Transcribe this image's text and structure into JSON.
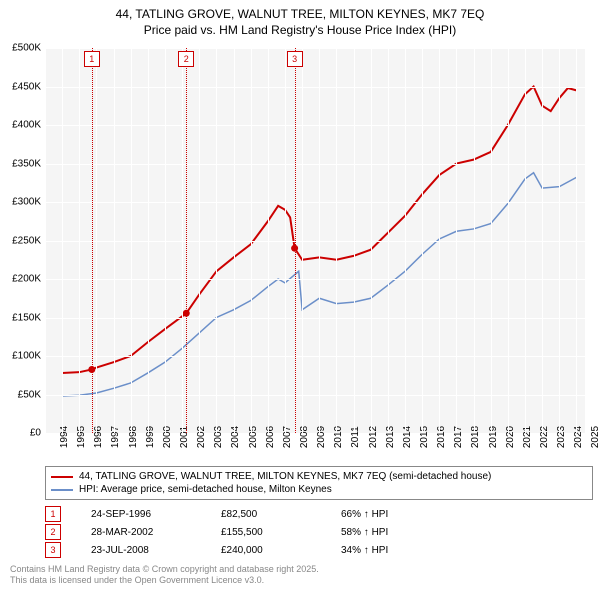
{
  "title_line1": "44, TATLING GROVE, WALNUT TREE, MILTON KEYNES, MK7 7EQ",
  "title_line2": "Price paid vs. HM Land Registry's House Price Index (HPI)",
  "chart": {
    "type": "line",
    "background_color": "#f5f5f5",
    "grid_color": "#ffffff",
    "x_years": [
      1994,
      1995,
      1996,
      1997,
      1998,
      1999,
      2000,
      2001,
      2002,
      2003,
      2004,
      2005,
      2006,
      2007,
      2008,
      2009,
      2010,
      2011,
      2012,
      2013,
      2014,
      2015,
      2016,
      2017,
      2018,
      2019,
      2020,
      2021,
      2022,
      2023,
      2024,
      2025
    ],
    "xlim": [
      1994,
      2025.5
    ],
    "ylim": [
      0,
      500000
    ],
    "ytick_step": 50000,
    "yticks": [
      "£0",
      "£50K",
      "£100K",
      "£150K",
      "£200K",
      "£250K",
      "£300K",
      "£350K",
      "£400K",
      "£450K",
      "£500K"
    ],
    "series": [
      {
        "name": "44, TATLING GROVE, WALNUT TREE, MILTON KEYNES, MK7 7EQ (semi-detached house)",
        "color": "#cc0000",
        "width": 2,
        "points": [
          [
            1995,
            78000
          ],
          [
            1996,
            79000
          ],
          [
            1996.73,
            82500
          ],
          [
            1997,
            85000
          ],
          [
            1998,
            92000
          ],
          [
            1999,
            100000
          ],
          [
            2000,
            118000
          ],
          [
            2001,
            135000
          ],
          [
            2002.24,
            155500
          ],
          [
            2003,
            180000
          ],
          [
            2004,
            210000
          ],
          [
            2005,
            228000
          ],
          [
            2006,
            245000
          ],
          [
            2007,
            275000
          ],
          [
            2007.6,
            295000
          ],
          [
            2008,
            290000
          ],
          [
            2008.3,
            280000
          ],
          [
            2008.56,
            240000
          ],
          [
            2009,
            225000
          ],
          [
            2010,
            228000
          ],
          [
            2011,
            225000
          ],
          [
            2012,
            230000
          ],
          [
            2013,
            238000
          ],
          [
            2014,
            260000
          ],
          [
            2015,
            282000
          ],
          [
            2016,
            310000
          ],
          [
            2017,
            335000
          ],
          [
            2018,
            350000
          ],
          [
            2019,
            355000
          ],
          [
            2020,
            365000
          ],
          [
            2021,
            400000
          ],
          [
            2022,
            440000
          ],
          [
            2022.5,
            450000
          ],
          [
            2023,
            425000
          ],
          [
            2023.5,
            418000
          ],
          [
            2024,
            435000
          ],
          [
            2024.5,
            448000
          ],
          [
            2025,
            445000
          ]
        ],
        "markers": [
          {
            "x": 1996.73,
            "y": 82500
          },
          {
            "x": 2002.24,
            "y": 155500
          },
          {
            "x": 2008.56,
            "y": 240000
          }
        ]
      },
      {
        "name": "HPI: Average price, semi-detached house, Milton Keynes",
        "color": "#6b8fc9",
        "width": 1.5,
        "points": [
          [
            1995,
            48000
          ],
          [
            1996,
            49000
          ],
          [
            1997,
            52000
          ],
          [
            1998,
            58000
          ],
          [
            1999,
            65000
          ],
          [
            2000,
            78000
          ],
          [
            2001,
            92000
          ],
          [
            2002,
            110000
          ],
          [
            2003,
            130000
          ],
          [
            2004,
            150000
          ],
          [
            2005,
            160000
          ],
          [
            2006,
            172000
          ],
          [
            2007,
            190000
          ],
          [
            2007.6,
            200000
          ],
          [
            2008,
            195000
          ],
          [
            2008.8,
            210000
          ],
          [
            2009,
            160000
          ],
          [
            2010,
            175000
          ],
          [
            2011,
            168000
          ],
          [
            2012,
            170000
          ],
          [
            2013,
            175000
          ],
          [
            2014,
            192000
          ],
          [
            2015,
            210000
          ],
          [
            2016,
            232000
          ],
          [
            2017,
            252000
          ],
          [
            2018,
            262000
          ],
          [
            2019,
            265000
          ],
          [
            2020,
            272000
          ],
          [
            2021,
            298000
          ],
          [
            2022,
            330000
          ],
          [
            2022.5,
            338000
          ],
          [
            2023,
            318000
          ],
          [
            2024,
            320000
          ],
          [
            2025,
            332000
          ]
        ]
      }
    ],
    "events": [
      {
        "n": "1",
        "x": 1996.73,
        "date": "24-SEP-1996",
        "price": "£82,500",
        "pct": "66% ↑ HPI"
      },
      {
        "n": "2",
        "x": 2002.24,
        "date": "28-MAR-2002",
        "price": "£155,500",
        "pct": "58% ↑ HPI"
      },
      {
        "n": "3",
        "x": 2008.56,
        "date": "23-JUL-2008",
        "price": "£240,000",
        "pct": "34% ↑ HPI"
      }
    ],
    "event_color": "#cc0000"
  },
  "footer_line1": "Contains HM Land Registry data © Crown copyright and database right 2025.",
  "footer_line2": "This data is licensed under the Open Government Licence v3.0."
}
